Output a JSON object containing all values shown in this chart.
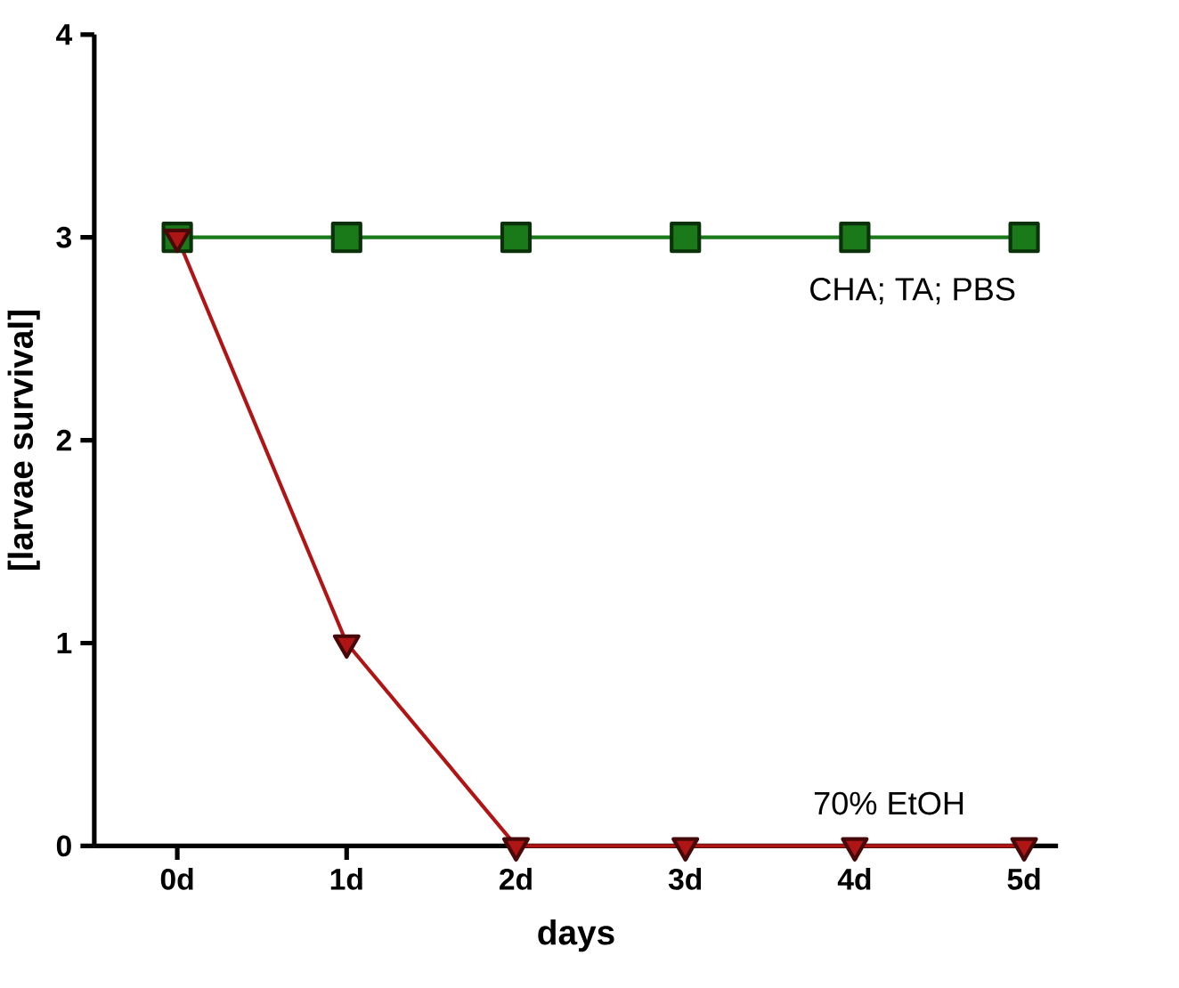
{
  "chart_data": {
    "type": "line",
    "xlabel": "days",
    "ylabel": "[larvae survival]",
    "categories": [
      "0d",
      "1d",
      "2d",
      "3d",
      "4d",
      "5d"
    ],
    "ylim": [
      0,
      4
    ],
    "yticks": [
      0,
      1,
      2,
      3,
      4
    ],
    "series": [
      {
        "name": "CHA; TA; PBS",
        "color": "#1a7a1a",
        "marker": "square",
        "values": [
          3,
          3,
          3,
          3,
          3,
          3
        ]
      },
      {
        "name": "70%  EtOH",
        "color": "#b01515",
        "marker": "triangle",
        "values": [
          3,
          1,
          0,
          0,
          0,
          0
        ]
      }
    ]
  }
}
